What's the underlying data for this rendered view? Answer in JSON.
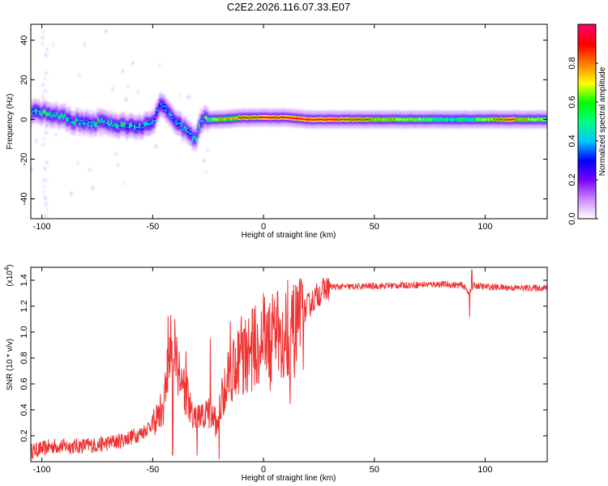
{
  "figure": {
    "title": "C2E2.2026.116.07.33.E07"
  },
  "chart_data": [
    {
      "type": "heatmap",
      "name": "spectrogram",
      "xlabel": "Height of straight line (km)",
      "ylabel": "Frequency (Hz)",
      "xlim": [
        -105,
        128
      ],
      "ylim": [
        -50,
        48
      ],
      "xticks": [
        -100,
        -50,
        0,
        50,
        100
      ],
      "xtick_labels": [
        "-100",
        "-50",
        "0",
        "50",
        "100"
      ],
      "yticks": [
        -40,
        -20,
        0,
        20,
        40
      ],
      "ytick_labels": [
        "-40",
        "-20",
        "0",
        "20",
        "40"
      ],
      "ridge": [
        {
          "x": -104,
          "f": 4,
          "amp": 0.45
        },
        {
          "x": -98,
          "f": 3,
          "amp": 0.55
        },
        {
          "x": -94,
          "f": 2,
          "amp": 0.5
        },
        {
          "x": -90,
          "f": 1,
          "amp": 0.55
        },
        {
          "x": -86,
          "f": -1,
          "amp": 0.45
        },
        {
          "x": -82,
          "f": -1,
          "amp": 0.5
        },
        {
          "x": -78,
          "f": -2,
          "amp": 0.45
        },
        {
          "x": -74,
          "f": -1,
          "amp": 0.55
        },
        {
          "x": -70,
          "f": -2,
          "amp": 0.45
        },
        {
          "x": -66,
          "f": -3,
          "amp": 0.5
        },
        {
          "x": -62,
          "f": -3,
          "amp": 0.45
        },
        {
          "x": -58,
          "f": -3,
          "amp": 0.5
        },
        {
          "x": -54,
          "f": -3,
          "amp": 0.45
        },
        {
          "x": -50,
          "f": -2,
          "amp": 0.4
        },
        {
          "x": -47,
          "f": 7,
          "amp": 0.35
        },
        {
          "x": -44,
          "f": 5,
          "amp": 0.4
        },
        {
          "x": -40,
          "f": 0,
          "amp": 0.45
        },
        {
          "x": -37,
          "f": -4,
          "amp": 0.5
        },
        {
          "x": -34,
          "f": -7,
          "amp": 0.5
        },
        {
          "x": -31,
          "f": -10,
          "amp": 0.45
        },
        {
          "x": -28,
          "f": 0,
          "amp": 0.55
        },
        {
          "x": -20,
          "f": 0,
          "amp": 0.75
        },
        {
          "x": -10,
          "f": 1,
          "amp": 0.85
        },
        {
          "x": 0,
          "f": 1,
          "amp": 0.9
        },
        {
          "x": 10,
          "f": 1,
          "amp": 0.95
        },
        {
          "x": 20,
          "f": 0,
          "amp": 0.98
        },
        {
          "x": 30,
          "f": 0,
          "amp": 0.95
        },
        {
          "x": 40,
          "f": 0,
          "amp": 0.85
        },
        {
          "x": 50,
          "f": 0,
          "amp": 0.8
        },
        {
          "x": 60,
          "f": 0,
          "amp": 0.75
        },
        {
          "x": 70,
          "f": 0,
          "amp": 0.65
        },
        {
          "x": 80,
          "f": 0,
          "amp": 0.55
        },
        {
          "x": 90,
          "f": 0,
          "amp": 0.55
        },
        {
          "x": 100,
          "f": 0,
          "amp": 0.7
        },
        {
          "x": 110,
          "f": 0,
          "amp": 0.9
        },
        {
          "x": 120,
          "f": 0,
          "amp": 0.75
        },
        {
          "x": 128,
          "f": 0,
          "amp": 0.65
        }
      ]
    },
    {
      "type": "colorbar",
      "name": "amplitude-colorbar",
      "label": "Normalized spectral amplitude",
      "range": [
        0,
        1
      ],
      "ticks": [
        0.0,
        0.2,
        0.4,
        0.6,
        0.8
      ],
      "tick_labels": [
        "0.0",
        "0.2",
        "0.4",
        "0.6",
        "0.8"
      ],
      "colors": [
        "#ffffff",
        "#cc88ff",
        "#7700ff",
        "#0000ff",
        "#00c8ff",
        "#00ff80",
        "#00ff00",
        "#ffff00",
        "#ff8000",
        "#ff0000",
        "#ff0066"
      ]
    },
    {
      "type": "line",
      "name": "snr",
      "xlabel": "Height of straight line (km)",
      "ylabel": "SNR (10 * v/v)",
      "scale_label": "(x10",
      "scale_exponent": "4",
      "scale_close": ")",
      "xlim": [
        -105,
        128
      ],
      "ylim": [
        0,
        1.5
      ],
      "xticks": [
        -100,
        -50,
        0,
        50,
        100
      ],
      "xtick_labels": [
        "-100",
        "-50",
        "0",
        "50",
        "100"
      ],
      "yticks": [
        0.2,
        0.4,
        0.6,
        0.8,
        1.0,
        1.2,
        1.4
      ],
      "ytick_labels": [
        "0.2",
        "0.4",
        "0.6",
        "0.8",
        "1.0",
        "1.2",
        "1.4"
      ],
      "color": "#ee3333",
      "envelope_x": [
        -105,
        -95,
        -85,
        -75,
        -65,
        -55,
        -50,
        -45,
        -43,
        -41,
        -38,
        -35,
        -32,
        -28,
        -24,
        -21,
        -18,
        -15,
        -10,
        -5,
        0,
        5,
        10,
        15,
        20,
        25,
        30,
        40,
        60,
        80,
        90,
        93,
        95,
        100,
        115,
        128
      ],
      "envelope_y": [
        0.08,
        0.12,
        0.12,
        0.13,
        0.16,
        0.22,
        0.3,
        0.45,
        0.8,
        0.95,
        0.75,
        0.55,
        0.35,
        0.35,
        0.4,
        0.3,
        0.6,
        0.75,
        0.85,
        0.9,
        1.0,
        1.02,
        1.05,
        1.05,
        1.2,
        1.3,
        1.35,
        1.35,
        1.36,
        1.37,
        1.36,
        1.3,
        1.36,
        1.35,
        1.34,
        1.34
      ],
      "spike_x": [
        -43,
        -41,
        -40,
        -35,
        -30,
        -24,
        -20,
        -15,
        -10,
        -8,
        -5,
        0,
        3,
        5,
        8,
        10,
        11,
        12,
        15,
        93,
        94
      ],
      "spike_y": [
        1.12,
        0.05,
        1.1,
        0.85,
        0.05,
        0.95,
        0.02,
        1.08,
        1.12,
        0.55,
        1.18,
        1.3,
        0.55,
        1.25,
        0.65,
        1.3,
        1.4,
        0.45,
        1.35,
        1.12,
        1.48
      ]
    }
  ]
}
